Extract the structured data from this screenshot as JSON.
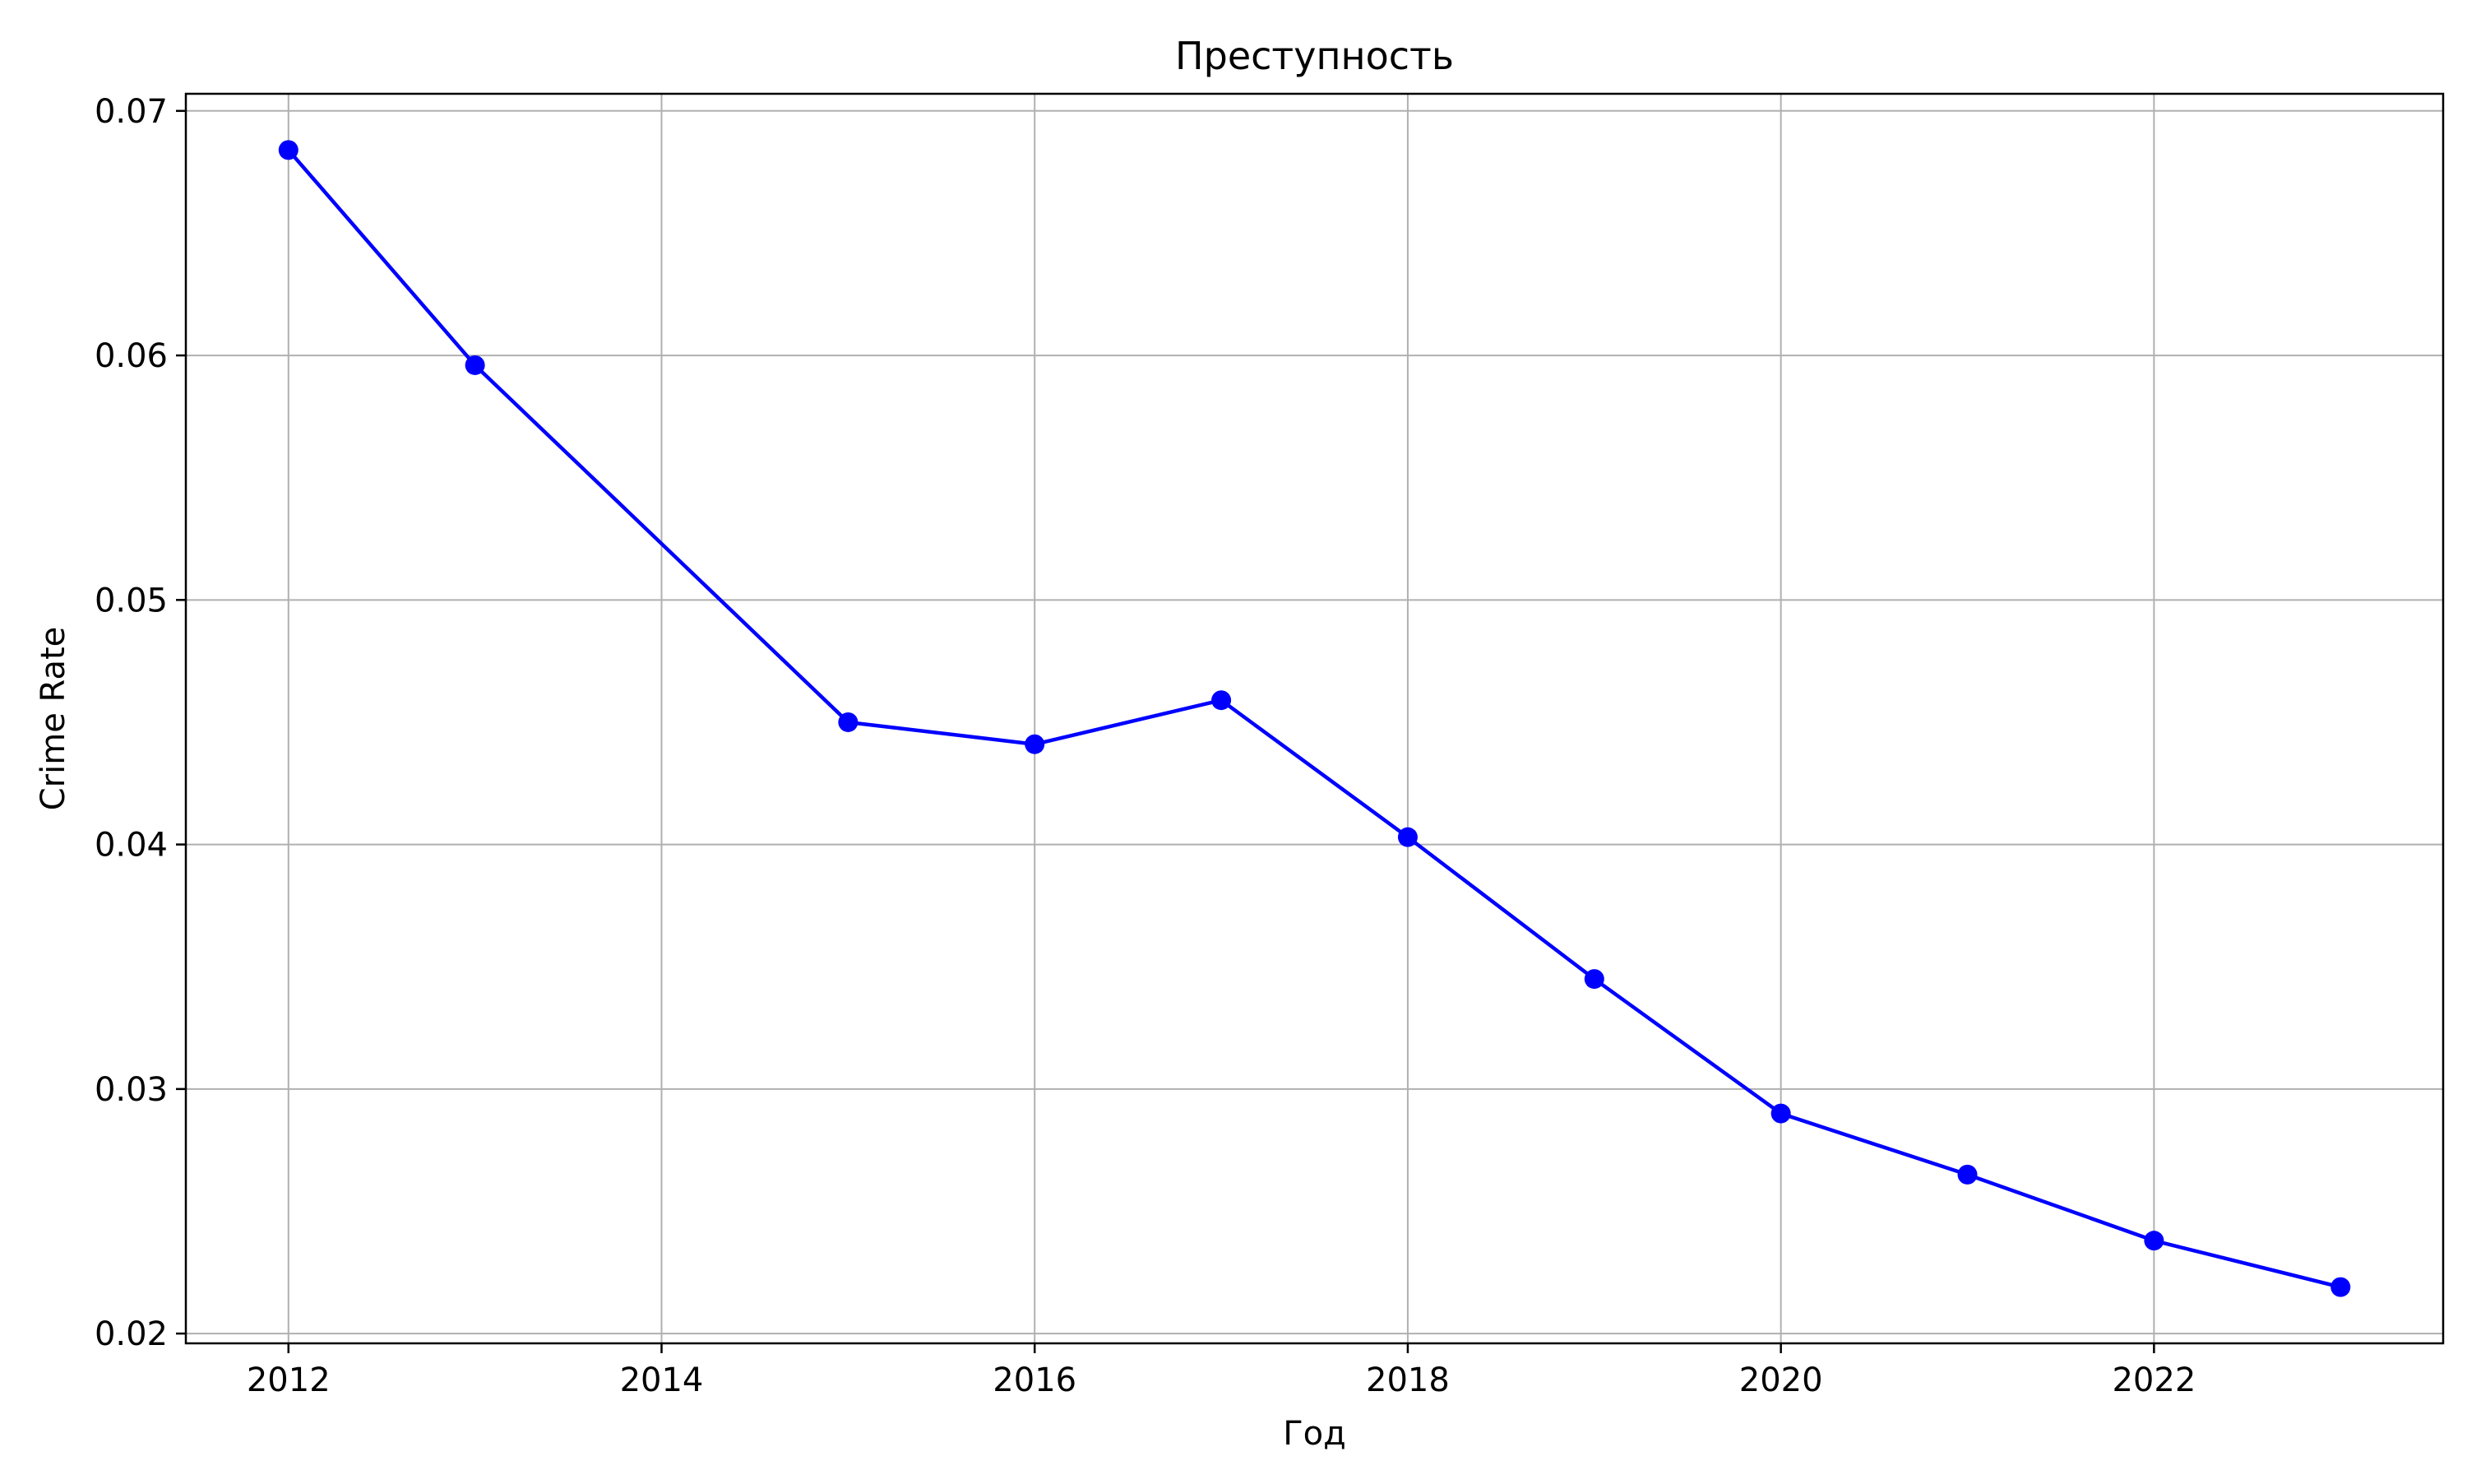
{
  "chart_data": {
    "type": "line",
    "title": "Преступность",
    "xlabel": "Год",
    "ylabel": "Crime Rate",
    "x": [
      2012,
      2013,
      2015,
      2016,
      2017,
      2018,
      2019,
      2020,
      2021,
      2022,
      2023
    ],
    "series": [
      {
        "values": [
          0.0684,
          0.0596,
          0.045,
          0.0441,
          0.0459,
          0.0403,
          0.0345,
          0.029,
          0.0265,
          0.0238,
          0.0219
        ],
        "color": "#0000ff",
        "marker": "circle"
      }
    ],
    "xlim": [
      2011.45,
      2023.55
    ],
    "ylim": [
      0.0196,
      0.0707
    ],
    "xticks": [
      2012,
      2014,
      2016,
      2018,
      2020,
      2022
    ],
    "xtick_labels": [
      "2012",
      "2014",
      "2016",
      "2018",
      "2020",
      "2022"
    ],
    "yticks": [
      0.02,
      0.03,
      0.04,
      0.05,
      0.06,
      0.07
    ],
    "ytick_labels": [
      "0.02",
      "0.03",
      "0.04",
      "0.05",
      "0.06",
      "0.07"
    ],
    "grid": true,
    "grid_color": "#b0b0b0",
    "legend": "none"
  }
}
